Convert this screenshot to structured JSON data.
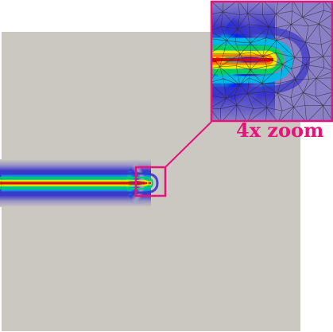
{
  "figure": {
    "zoom_label": "4x zoom"
  },
  "colors": {
    "domain_fill": "#cbc8c2",
    "highlight": "#e8127a",
    "mesh_line": "#2a2a2a",
    "colormap": [
      "#8a80c8",
      "#3b34c9",
      "#0a28e6",
      "#00b8e6",
      "#00d060",
      "#e8e800",
      "#ff7a00",
      "#e00000"
    ]
  }
}
